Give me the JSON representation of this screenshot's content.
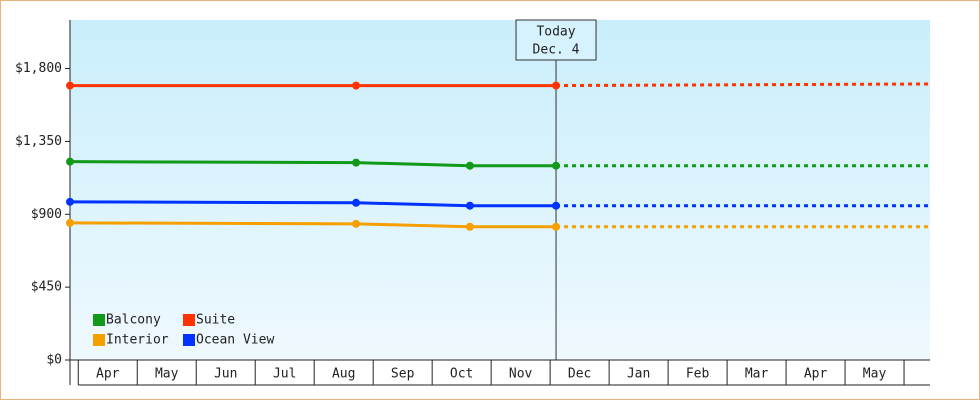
{
  "chart_data": {
    "type": "line",
    "categories": [
      "Apr",
      "May",
      "Jun",
      "Jul",
      "Aug",
      "Sep",
      "Oct",
      "Nov",
      "Dec",
      "Jan",
      "Feb",
      "Mar",
      "Apr",
      "May"
    ],
    "xlim": [
      -0.14,
      14.44
    ],
    "ylim": [
      0,
      2100
    ],
    "yticks": [
      {
        "value": 0,
        "label": "$0"
      },
      {
        "value": 450,
        "label": "$450"
      },
      {
        "value": 900,
        "label": "$900"
      },
      {
        "value": 1350,
        "label": "$1,350"
      },
      {
        "value": 1800,
        "label": "$1,800"
      }
    ],
    "annotation": {
      "x": 8.1,
      "lines": [
        "Today",
        "Dec. 4"
      ]
    },
    "series": [
      {
        "name": "Balcony",
        "color": "#11991a",
        "x": [
          -0.14,
          4.71,
          6.64,
          8.1,
          14.44
        ],
        "values": [
          1225,
          1219,
          1200,
          1200,
          1200
        ]
      },
      {
        "name": "Suite",
        "color": "#ff3300",
        "x": [
          -0.14,
          4.71,
          8.1,
          14.44
        ],
        "values": [
          1695,
          1695,
          1695,
          1705
        ]
      },
      {
        "name": "Interior",
        "color": "#f5a000",
        "x": [
          -0.14,
          4.71,
          6.64,
          8.1,
          14.44
        ],
        "values": [
          847,
          841,
          823,
          823,
          823
        ]
      },
      {
        "name": "Ocean View",
        "color": "#0033ff",
        "x": [
          -0.14,
          4.71,
          6.64,
          8.1,
          14.44
        ],
        "values": [
          977,
          971,
          953,
          953,
          953
        ]
      }
    ]
  }
}
